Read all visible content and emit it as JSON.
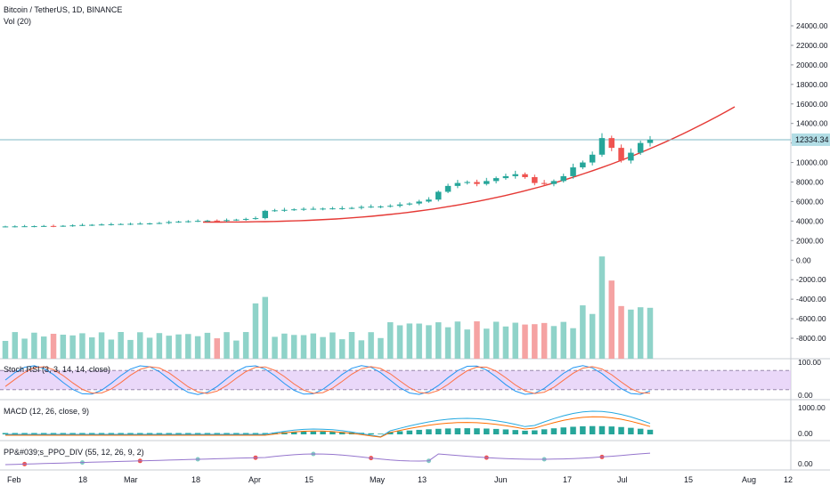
{
  "legend": {
    "main": "Bitcoin / TetherUS, 1D, BINANCE",
    "volume": "Vol (20)",
    "stoch": "Stoch RSI (3, 3, 14, 14, close)",
    "macd": "MACD (12, 26, close, 9)",
    "ppo": "PP&#039;s_PPO_DIV (55, 12, 26, 9, 2)"
  },
  "price_axis": {
    "ticks": [
      "24000.00",
      "22000.00",
      "20000.00",
      "18000.00",
      "16000.00",
      "14000.00",
      "12000.00",
      "10000.00",
      "8000.00",
      "6000.00",
      "4000.00",
      "2000.00",
      "0.00",
      "-2000.00",
      "-4000.00",
      "-6000.00",
      "-8000.00"
    ],
    "last_price": "12334.34"
  },
  "stoch_axis": {
    "ticks": [
      "100.00",
      "0.00"
    ]
  },
  "macd_axis": {
    "ticks": [
      "1000.00",
      "0.00"
    ]
  },
  "ppo_axis": {
    "ticks": [
      "0.00"
    ]
  },
  "time_axis": {
    "labels": [
      "Feb",
      "18",
      "Mar",
      "18",
      "Apr",
      "15",
      "May",
      "13",
      "Jun",
      "17",
      "Jul",
      "15",
      "Aug",
      "12"
    ]
  },
  "colors": {
    "up": "#26a69a",
    "down": "#ef5350",
    "up_vol": "#8fd3c9",
    "down_vol": "#f5a3a3",
    "curve": "#e53935",
    "last_price_line": "#7fb9c5",
    "last_price_label": "#b2dde5",
    "stoch_band": "#e1c8f7",
    "stoch_k": "#2196f3",
    "stoch_d": "#ff7043",
    "macd": "#26a9e0",
    "signal": "#ff6d00",
    "ppo_line": "#9575cd"
  },
  "chart_data": {
    "type": "candlestick",
    "title": "Bitcoin / TetherUS, 1D, BINANCE",
    "series": [
      {
        "name": "Bitcoin / TetherUS",
        "style": "candles",
        "close": [
          3450,
          3460,
          3470,
          3480,
          3500,
          3480,
          3520,
          3560,
          3600,
          3620,
          3650,
          3680,
          3700,
          3720,
          3740,
          3760,
          3800,
          3900,
          3950,
          3980,
          4020,
          4050,
          4030,
          4100,
          4150,
          4220,
          4300,
          5050,
          5100,
          5150,
          5200,
          5250,
          5260,
          5280,
          5300,
          5320,
          5350,
          5450,
          5480,
          5500,
          5560,
          5700,
          5800,
          6000,
          6200,
          7000,
          7600,
          7900,
          8000,
          7800,
          8100,
          8400,
          8600,
          8800,
          8500,
          7900,
          7800,
          8100,
          8600,
          9500,
          10000,
          10800,
          12500,
          11500,
          10200,
          11000,
          12000,
          12334.34
        ]
      },
      {
        "name": "Vol (20)",
        "style": "volume"
      },
      {
        "name": "Stoch RSI (3, 3, 14, 14, close)",
        "ylim": [
          0,
          100
        ]
      },
      {
        "name": "MACD (12, 26, close, 9)"
      },
      {
        "name": "PP&#039;s_PPO_DIV (55, 12, 26, 9, 2)"
      }
    ],
    "ylim": [
      -9500,
      24500
    ],
    "grid": false
  }
}
